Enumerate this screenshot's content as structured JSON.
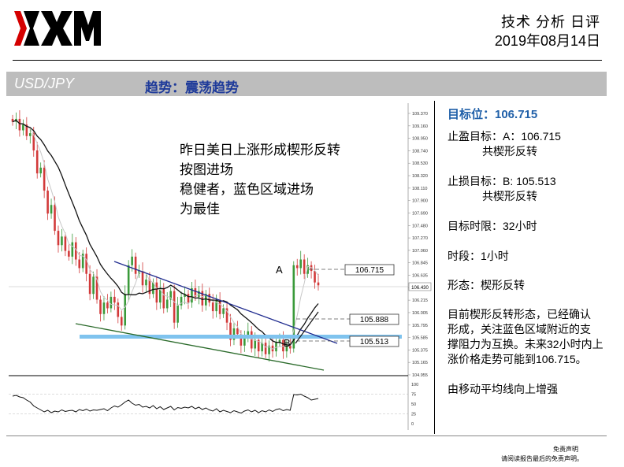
{
  "header": {
    "report_title": "技术 分析 日评",
    "date": "2019年08月14日"
  },
  "band": {
    "pair": "USD/JPY",
    "trend": "趋势：震荡趋势"
  },
  "sidebar": {
    "target": "目标位：106.715",
    "take_profit_1": "止盈目标：A：106.715",
    "take_profit_2": "共楔形反转",
    "stop_loss_1": "止损目标：B:  105.513",
    "stop_loss_2": "共楔形反转",
    "time_limit": "目标时限：32小时",
    "period": "时段：1小时",
    "pattern": "形态：楔形反转",
    "analysis_1": "目前楔形反转形态，已经确认",
    "analysis_2": "形成，关注蓝色区域附近的支",
    "analysis_3": "撑阻力为互换。未来32小时内上",
    "analysis_4": "涨价格走势可能到106.715。",
    "note": "由移动平均线向上增强"
  },
  "disclaimer": {
    "line1": "免责声明",
    "line2": "请阅读报告最后的免责声明。"
  },
  "colors": {
    "accent_blue": "#1f3b9a",
    "zone_blue": "#7fc3ee",
    "candle_up": "#3a9a3a",
    "candle_down": "#d23a3a"
  },
  "chart_data": {
    "type": "candlestick",
    "annotation": {
      "line1": "昨日美日上涨形成楔形反转",
      "line2": "按图进场",
      "line3": "稳健者，蓝色区域进场",
      "line4": "为最佳"
    },
    "y_ticks": [
      "109.370",
      "109.160",
      "108.950",
      "108.740",
      "108.530",
      "108.320",
      "108.110",
      "107.900",
      "107.690",
      "107.480",
      "107.270",
      "107.060",
      "106.845",
      "106.635",
      "106.425",
      "106.215",
      "106.005",
      "105.795",
      "105.585",
      "105.375",
      "105.165",
      "104.955"
    ],
    "current_price": "106.430",
    "ylim": [
      104.9,
      109.4
    ],
    "levels": [
      {
        "label": "A",
        "value": 106.715,
        "text": "106.715"
      },
      {
        "label": "",
        "value": 105.888,
        "text": "105.888"
      },
      {
        "label": "B",
        "value": 105.513,
        "text": "105.513"
      }
    ],
    "support_zone": 105.55,
    "wedge": {
      "upper": [
        [
          0.22,
          106.98
        ],
        [
          0.68,
          105.46
        ]
      ],
      "lower": [
        [
          0.15,
          105.86
        ],
        [
          0.84,
          104.98
        ]
      ]
    },
    "closes": [
      109.2,
      109.25,
      109.05,
      109.15,
      108.95,
      109.0,
      108.7,
      108.3,
      108.4,
      108.0,
      107.6,
      107.75,
      107.3,
      107.05,
      107.2,
      106.95,
      106.85,
      107.1,
      106.8,
      106.65,
      106.9,
      106.55,
      106.2,
      106.5,
      106.1,
      105.85,
      106.05,
      105.95,
      106.15,
      106.05,
      105.8,
      105.65,
      106.2,
      106.7,
      106.85,
      106.55,
      106.6,
      106.35,
      106.45,
      106.2,
      106.4,
      106.05,
      106.3,
      105.95,
      106.1,
      106.25,
      105.7,
      106.0,
      106.15,
      106.2,
      106.05,
      106.3,
      106.15,
      106.25,
      106.0,
      106.2,
      106.05,
      105.9,
      106.1,
      105.85,
      105.95,
      105.7,
      105.4,
      105.6,
      105.5,
      105.3,
      105.45,
      105.55,
      105.25,
      105.4,
      105.2,
      105.35,
      105.15,
      105.3,
      105.2,
      105.35,
      105.4,
      105.2,
      105.3,
      105.25,
      106.7,
      106.65,
      106.8,
      106.55,
      106.7,
      106.6,
      106.4,
      106.35
    ],
    "rsi": {
      "ticks": [
        "100",
        "75",
        "50",
        "25",
        "0"
      ],
      "values": [
        70,
        72,
        68,
        66,
        60,
        55,
        45,
        40,
        35,
        30,
        34,
        28,
        32,
        30,
        35,
        31,
        33,
        34,
        30,
        36,
        33,
        37,
        32,
        35,
        34,
        36,
        38,
        33,
        40,
        45,
        42,
        48,
        55,
        60,
        52,
        47,
        49,
        42,
        44,
        40,
        46,
        38,
        43,
        36,
        40,
        44,
        35,
        41,
        39,
        42,
        40,
        44,
        38,
        42,
        36,
        40,
        35,
        32,
        38,
        30,
        34,
        31,
        28,
        33,
        30,
        27,
        32,
        35,
        30,
        34,
        28,
        33,
        30,
        35,
        31,
        36,
        38,
        33,
        36,
        34,
        74,
        73,
        75,
        70,
        66,
        60,
        62,
        64
      ]
    }
  }
}
